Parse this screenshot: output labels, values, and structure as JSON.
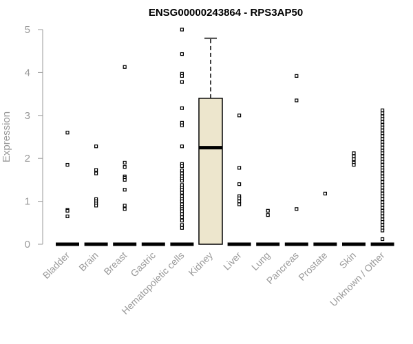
{
  "chart_data": {
    "type": "boxplot",
    "title": "ENSG00000243864 - RPS3AP50",
    "xlabel": "",
    "ylabel": "Expression",
    "ylim": [
      0,
      5
    ],
    "yticks": [
      0,
      1,
      2,
      3,
      4,
      5
    ],
    "box_fill": "#ede6cd",
    "axis_color": "#999999",
    "categories": [
      "Bladder",
      "Brain",
      "Breast",
      "Gastric",
      "Hematopoietic cells",
      "Kidney",
      "Liver",
      "Lung",
      "Pancreas",
      "Prostate",
      "Skin",
      "Unknown / Other"
    ],
    "series": [
      {
        "name": "Bladder",
        "q1": 0,
        "median": 0,
        "q3": 0,
        "whisker_low": 0,
        "whisker_high": 0,
        "outliers": [
          2.6,
          1.85,
          0.8,
          0.78,
          0.65
        ]
      },
      {
        "name": "Brain",
        "q1": 0,
        "median": 0,
        "q3": 0,
        "whisker_low": 0,
        "whisker_high": 0,
        "outliers": [
          2.28,
          1.73,
          1.65,
          1.05,
          1.0,
          0.95,
          0.9
        ]
      },
      {
        "name": "Breast",
        "q1": 0,
        "median": 0,
        "q3": 0,
        "whisker_low": 0,
        "whisker_high": 0,
        "outliers": [
          4.13,
          1.9,
          1.8,
          1.58,
          1.55,
          1.5,
          1.27,
          0.9,
          0.82
        ]
      },
      {
        "name": "Gastric",
        "q1": 0,
        "median": 0,
        "q3": 0,
        "whisker_low": 0,
        "whisker_high": 0,
        "outliers": []
      },
      {
        "name": "Hematopoietic cells",
        "q1": 0,
        "median": 0,
        "q3": 0,
        "whisker_low": 0,
        "whisker_high": 0,
        "outliers": [
          5.0,
          4.43,
          3.97,
          3.92,
          3.78,
          3.17,
          2.83,
          2.77,
          2.28,
          1.87,
          1.82,
          1.72,
          1.65,
          1.58,
          1.53,
          1.48,
          1.38,
          1.32,
          1.27,
          1.2,
          1.12,
          1.05,
          1.0,
          0.93,
          0.87,
          0.82,
          0.77,
          0.7,
          0.63,
          0.55,
          0.45,
          0.38
        ]
      },
      {
        "name": "Kidney",
        "q1": 0,
        "median": 2.25,
        "q3": 3.4,
        "whisker_low": 0,
        "whisker_high": 4.8,
        "outliers": []
      },
      {
        "name": "Liver",
        "q1": 0,
        "median": 0,
        "q3": 0,
        "whisker_low": 0,
        "whisker_high": 0,
        "outliers": [
          3.0,
          1.78,
          1.4,
          1.12,
          1.07,
          1.0,
          0.93
        ]
      },
      {
        "name": "Lung",
        "q1": 0,
        "median": 0,
        "q3": 0,
        "whisker_low": 0,
        "whisker_high": 0,
        "outliers": [
          0.78,
          0.68
        ]
      },
      {
        "name": "Pancreas",
        "q1": 0,
        "median": 0,
        "q3": 0,
        "whisker_low": 0,
        "whisker_high": 0,
        "outliers": [
          3.92,
          3.35,
          0.82
        ]
      },
      {
        "name": "Prostate",
        "q1": 0,
        "median": 0,
        "q3": 0,
        "whisker_low": 0,
        "whisker_high": 0,
        "outliers": [
          1.18
        ]
      },
      {
        "name": "Skin",
        "q1": 0,
        "median": 0,
        "q3": 0,
        "whisker_low": 0,
        "whisker_high": 0,
        "outliers": [
          2.12,
          2.05,
          1.98,
          1.9,
          1.85
        ]
      },
      {
        "name": "Unknown / Other",
        "q1": 0,
        "median": 0,
        "q3": 0,
        "whisker_low": 0,
        "whisker_high": 0,
        "outliers": [
          3.12,
          3.05,
          2.98,
          2.92,
          2.85,
          2.78,
          2.72,
          2.65,
          2.58,
          2.52,
          2.45,
          2.38,
          2.32,
          2.25,
          2.18,
          2.12,
          2.05,
          1.98,
          1.92,
          1.85,
          1.78,
          1.72,
          1.65,
          1.58,
          1.52,
          1.45,
          1.38,
          1.32,
          1.25,
          1.18,
          1.12,
          1.05,
          0.98,
          0.92,
          0.85,
          0.78,
          0.72,
          0.65,
          0.58,
          0.52,
          0.45,
          0.38,
          0.32,
          0.12
        ]
      }
    ]
  }
}
